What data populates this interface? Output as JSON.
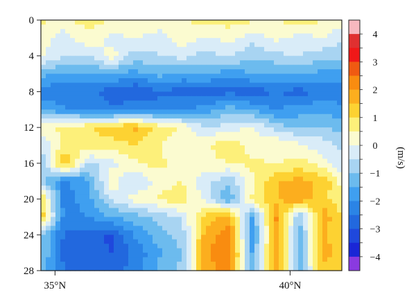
{
  "chart_data": {
    "type": "heatmap",
    "title": "",
    "xlabel": "",
    "ylabel": "",
    "x_ticks": [
      {
        "value": 35,
        "label": "35°N"
      },
      {
        "value": 40,
        "label": "40°N"
      }
    ],
    "xlim": [
      34.7,
      41.1
    ],
    "y_ticks": [
      0,
      4,
      8,
      12,
      16,
      20,
      24,
      28
    ],
    "ylim": [
      0,
      28
    ],
    "y_inverted": true,
    "colorbar": {
      "label": "(m/s)",
      "ticks": [
        4,
        3,
        2,
        1,
        0,
        -1,
        -2,
        -3,
        -4
      ],
      "levels": [
        4.5,
        4,
        3.5,
        3,
        2.5,
        2,
        1.5,
        1,
        0.5,
        0,
        -0.5,
        -1,
        -1.5,
        -2,
        -2.5,
        -3,
        -3.5,
        -4,
        -4.5
      ],
      "colors": [
        "#f7b8bf",
        "#e03030",
        "#f01818",
        "#f05a12",
        "#f98c10",
        "#fcae1e",
        "#fdd232",
        "#fdf07a",
        "#fbfbd0",
        "#d9ecf8",
        "#a8d4f2",
        "#6cbbee",
        "#3f9ff0",
        "#2b84e6",
        "#2268de",
        "#1f48dc",
        "#1a26d6",
        "#8a3ae0"
      ]
    },
    "rows_description": "velocity (m/s) by depth-row (0..28) and latitude-column (34.7..41.1)",
    "grid": {
      "x": [
        34.7,
        35.2,
        35.7,
        36.2,
        36.7,
        37.2,
        37.7,
        38.2,
        38.7,
        39.2,
        39.7,
        40.2,
        40.7,
        41.1
      ],
      "y": [
        0,
        2,
        4,
        6,
        8,
        10,
        12,
        14,
        16,
        18,
        20,
        22,
        24,
        26,
        28
      ],
      "values": [
        [
          0.6,
          0.4,
          0.7,
          0.5,
          0.3,
          0.6,
          0.4,
          0.8,
          0.7,
          0.6,
          0.5,
          0.8,
          0.5,
          0.4
        ],
        [
          0.2,
          -0.3,
          0.4,
          -0.2,
          0.1,
          -0.4,
          0.3,
          -0.1,
          0.2,
          -0.3,
          0.1,
          -0.2,
          0.0,
          -0.5
        ],
        [
          0.1,
          -0.4,
          -0.6,
          0.3,
          -0.8,
          -0.5,
          -0.3,
          -0.7,
          -0.4,
          -0.9,
          -0.6,
          -0.5,
          -0.8,
          -0.7
        ],
        [
          -1.3,
          -1.6,
          -1.5,
          -1.4,
          -1.7,
          -1.3,
          -1.6,
          -1.4,
          -1.8,
          -1.5,
          -1.6,
          -1.4,
          -1.7,
          -1.6
        ],
        [
          -2.2,
          -2.5,
          -2.3,
          -2.8,
          -3.0,
          -2.6,
          -2.7,
          -2.9,
          -2.6,
          -2.8,
          -2.5,
          -2.7,
          -2.4,
          -2.3
        ],
        [
          -1.6,
          -1.9,
          -2.2,
          -2.4,
          -2.1,
          -2.3,
          -2.0,
          -1.8,
          -1.2,
          -1.6,
          -2.0,
          -1.8,
          -1.6,
          -1.9
        ],
        [
          0.2,
          0.7,
          0.9,
          1.3,
          1.6,
          0.8,
          0.4,
          -0.5,
          -0.3,
          0.1,
          -0.8,
          -1.0,
          -0.9,
          -1.2
        ],
        [
          -0.4,
          0.6,
          0.9,
          0.8,
          1.0,
          0.5,
          0.2,
          0.4,
          0.9,
          0.3,
          0.5,
          0.1,
          -0.3,
          -0.6
        ],
        [
          -1.1,
          1.6,
          -0.6,
          -0.2,
          0.4,
          0.7,
          0.1,
          0.3,
          0.5,
          0.6,
          0.4,
          0.7,
          0.2,
          -0.4
        ],
        [
          -0.8,
          -2.1,
          -1.6,
          0.4,
          -0.6,
          0.2,
          0.5,
          -0.3,
          -0.9,
          0.4,
          1.5,
          1.7,
          1.4,
          0.3
        ],
        [
          1.2,
          -2.3,
          -1.7,
          -0.4,
          0.2,
          0.6,
          0.8,
          -0.2,
          -1.5,
          0.6,
          1.4,
          1.9,
          1.2,
          0.6
        ],
        [
          1.4,
          -2.2,
          -2.0,
          -1.5,
          -1.2,
          -0.9,
          -0.4,
          1.2,
          1.8,
          -1.6,
          2.1,
          -1.0,
          1.8,
          1.0
        ],
        [
          -1.0,
          -2.6,
          -2.7,
          -3.1,
          -1.9,
          -1.2,
          -0.8,
          1.7,
          2.3,
          -1.8,
          1.9,
          -1.3,
          1.6,
          1.2
        ],
        [
          -0.9,
          -2.7,
          -2.9,
          -3.0,
          -2.4,
          -1.6,
          -1.0,
          1.9,
          2.5,
          -1.6,
          2.0,
          -1.4,
          1.7,
          1.3
        ],
        [
          -1.2,
          -2.5,
          -2.6,
          -2.8,
          -2.2,
          -1.4,
          -0.9,
          1.8,
          2.2,
          -1.4,
          1.8,
          -1.2,
          1.4,
          1.1
        ]
      ]
    }
  }
}
